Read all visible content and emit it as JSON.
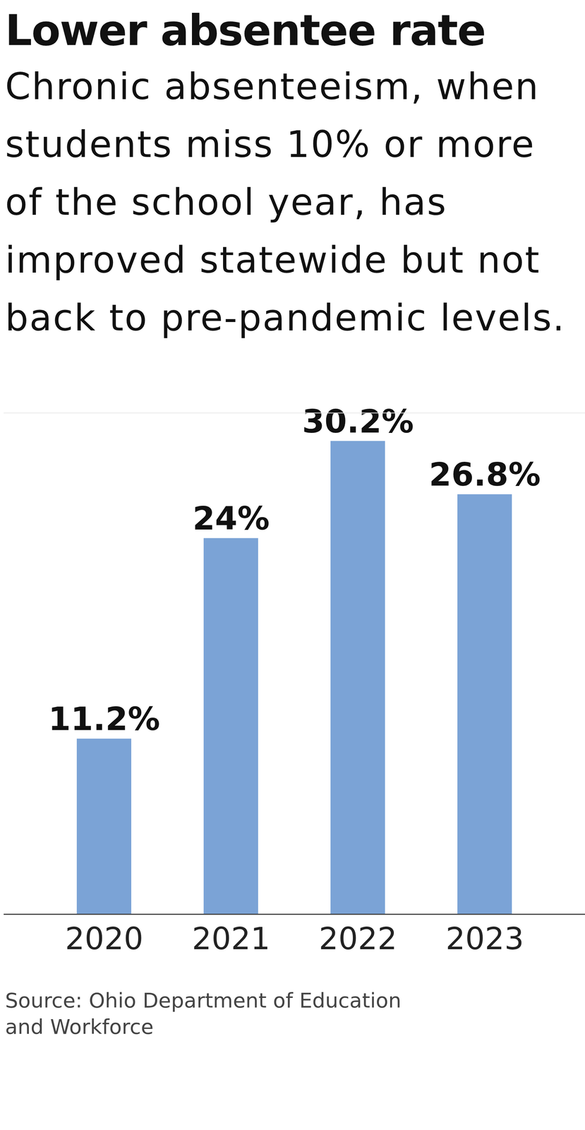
{
  "chart_data": {
    "type": "bar",
    "title": "Lower absentee rate",
    "subtitle": "Chronic absenteeism, when students miss 10% or more of the school year, has improved statewide but not back to pre-pandemic levels.",
    "source": "Source: Ohio Department of Education and Workforce",
    "categories": [
      "2020",
      "2021",
      "2022",
      "2023"
    ],
    "values": [
      11.2,
      24,
      30.2,
      26.8
    ],
    "value_labels": [
      "11.2%",
      "24%",
      "30.2%",
      "26.8%"
    ],
    "color": "#7ba3d6",
    "ylim": [
      0,
      32
    ],
    "yticks": [],
    "grid": false,
    "data_labels": true,
    "tick_labels": "x"
  }
}
